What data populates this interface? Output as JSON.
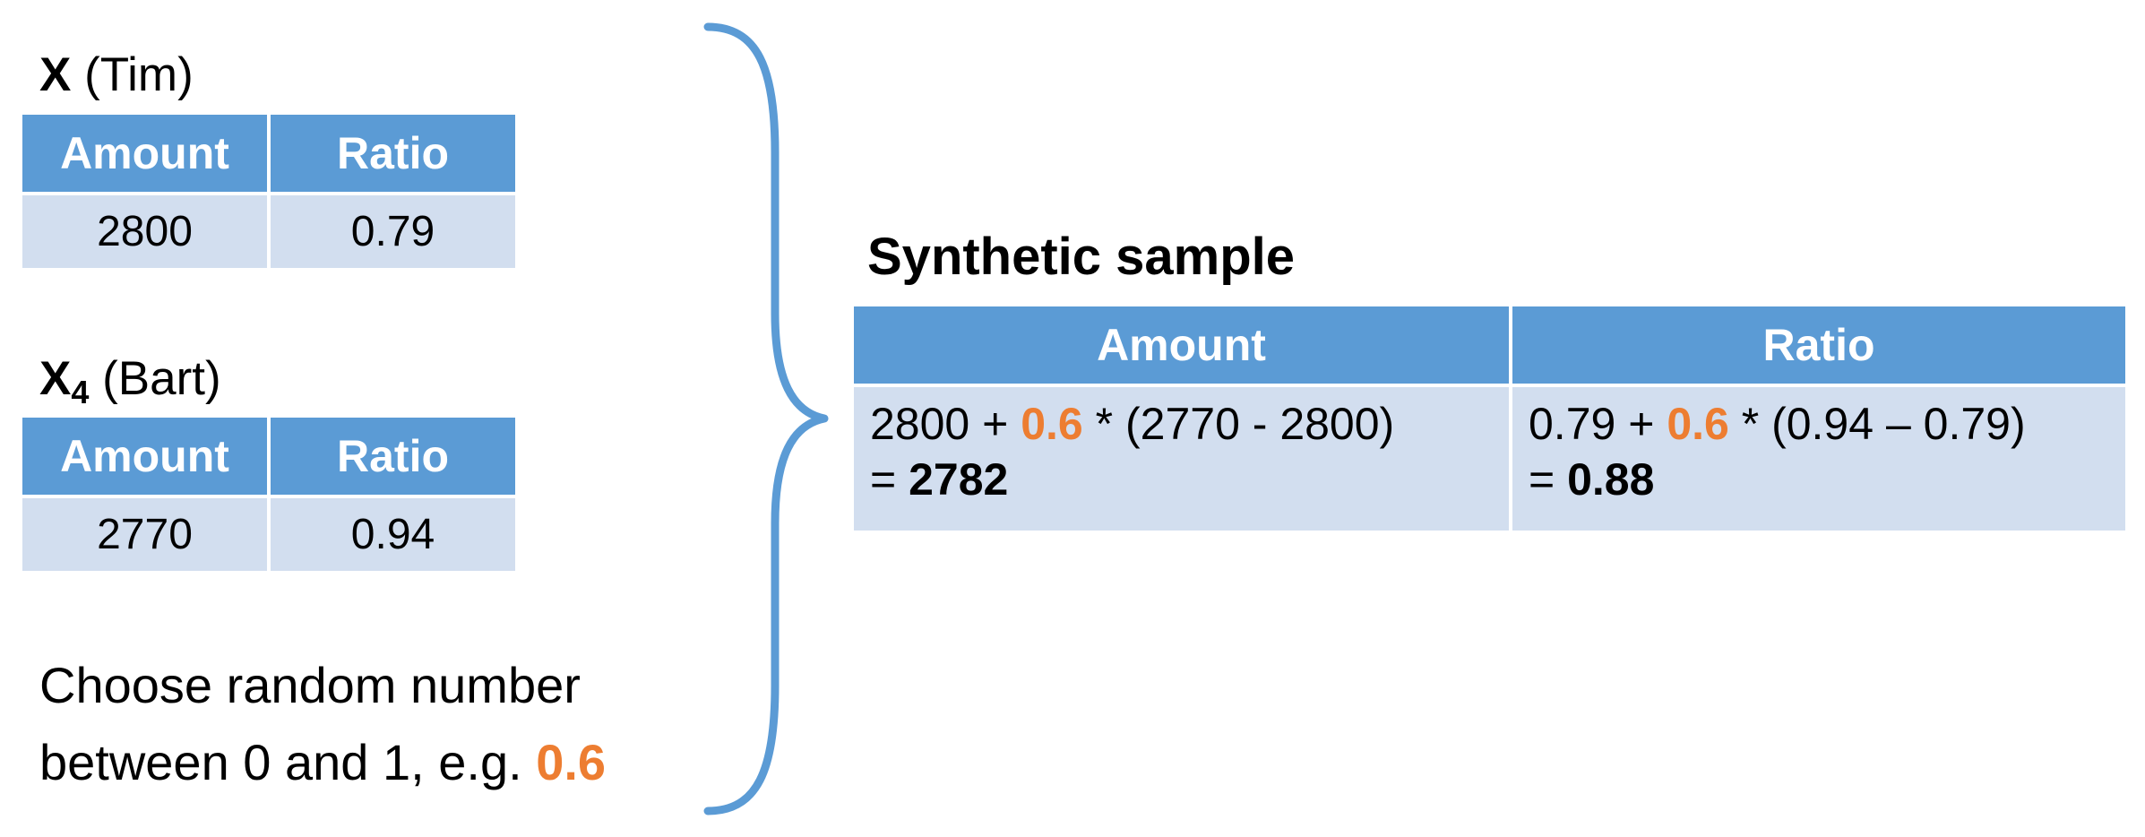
{
  "record_x": {
    "symbol": "X",
    "name": "(Tim)",
    "headers": [
      "Amount",
      "Ratio"
    ],
    "values": [
      "2800",
      "0.79"
    ]
  },
  "record_x4": {
    "symbol": "X",
    "subscript": "4",
    "name": "(Bart)",
    "headers": [
      "Amount",
      "Ratio"
    ],
    "values": [
      "2770",
      "0.94"
    ]
  },
  "random_note": {
    "line1": "Choose random number",
    "line2_prefix": "between 0 and 1, e.g.",
    "value": "0.6"
  },
  "synthetic": {
    "title": "Synthetic sample",
    "headers": [
      "Amount",
      "Ratio"
    ],
    "amount": {
      "expr_a": "2800 +",
      "factor": "0.6",
      "expr_b": "* (2770 - 2800)",
      "result_prefix": "=",
      "result": "2782"
    },
    "ratio": {
      "expr_a": "0.79 +",
      "factor": "0.6",
      "expr_b": "* (0.94 – 0.79)",
      "result_prefix": "=",
      "result": "0.88"
    }
  },
  "colors": {
    "header_fill": "#5b9bd5",
    "cell_fill": "#d2deef",
    "highlight": "#ed7d31",
    "brace": "#5b9bd5"
  }
}
